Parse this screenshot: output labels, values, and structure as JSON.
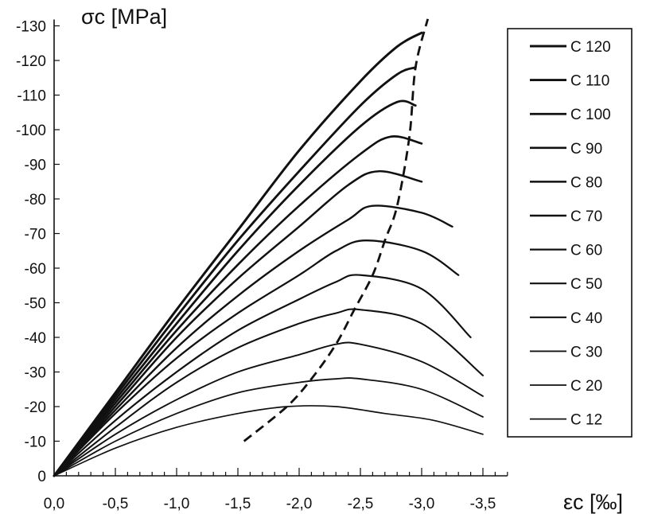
{
  "chart_data": {
    "type": "line",
    "ylabel": "σc [MPa]",
    "xlabel": "εc [‰]",
    "xlim": [
      0,
      -3.7
    ],
    "ylim": [
      0,
      -130
    ],
    "x_ticks": [
      "0,0",
      "-0,5",
      "-1,0",
      "-1,5",
      "-2,0",
      "-2,5",
      "-3,0",
      "-3,5"
    ],
    "x_tick_values": [
      0,
      -0.5,
      -1.0,
      -1.5,
      -2.0,
      -2.5,
      -3.0,
      -3.5
    ],
    "y_ticks": [
      "0",
      "-10",
      "-20",
      "-30",
      "-40",
      "-50",
      "-60",
      "-70",
      "-80",
      "-90",
      "-100",
      "-110",
      "-120",
      "-130"
    ],
    "y_tick_values": [
      0,
      -10,
      -20,
      -30,
      -40,
      -50,
      -60,
      -70,
      -80,
      -90,
      -100,
      -110,
      -120,
      -130
    ],
    "legend_position": "right",
    "series": [
      {
        "name": "C 120",
        "x": [
          0,
          -0.5,
          -1.0,
          -1.5,
          -2.0,
          -2.5,
          -2.8,
          -3.0
        ],
        "y": [
          0,
          -24,
          -48,
          -71,
          -94,
          -114,
          -124,
          -128
        ]
      },
      {
        "name": "C 110",
        "x": [
          0,
          -0.5,
          -1.0,
          -1.5,
          -2.0,
          -2.5,
          -2.8,
          -2.95
        ],
        "y": [
          0,
          -23,
          -46,
          -68,
          -88,
          -107,
          -116,
          -118
        ]
      },
      {
        "name": "C 100",
        "x": [
          0,
          -0.5,
          -1.0,
          -1.5,
          -2.0,
          -2.5,
          -2.8,
          -2.95
        ],
        "y": [
          0,
          -22,
          -44,
          -65,
          -84,
          -101,
          -108,
          -107
        ]
      },
      {
        "name": "C 90",
        "x": [
          0,
          -0.5,
          -1.0,
          -1.5,
          -2.0,
          -2.5,
          -2.75,
          -3.0
        ],
        "y": [
          0,
          -21,
          -42,
          -61,
          -78,
          -93,
          -98,
          -96
        ]
      },
      {
        "name": "C 80",
        "x": [
          0,
          -0.5,
          -1.0,
          -1.5,
          -2.0,
          -2.4,
          -2.65,
          -3.0
        ],
        "y": [
          0,
          -20,
          -40,
          -57,
          -72,
          -84,
          -88,
          -85
        ]
      },
      {
        "name": "C 70",
        "x": [
          0,
          -0.5,
          -1.0,
          -1.5,
          -2.0,
          -2.4,
          -2.6,
          -3.0,
          -3.25
        ],
        "y": [
          0,
          -19,
          -37,
          -52,
          -65,
          -74,
          -78,
          -76,
          -72
        ]
      },
      {
        "name": "C 60",
        "x": [
          0,
          -0.5,
          -1.0,
          -1.5,
          -2.0,
          -2.3,
          -2.55,
          -3.0,
          -3.3
        ],
        "y": [
          0,
          -18,
          -34,
          -47,
          -58,
          -65,
          -68,
          -65,
          -58
        ]
      },
      {
        "name": "C 50",
        "x": [
          0,
          -0.5,
          -1.0,
          -1.5,
          -2.0,
          -2.3,
          -2.5,
          -3.0,
          -3.4
        ],
        "y": [
          0,
          -16,
          -30,
          -42,
          -51,
          -56,
          -58,
          -54,
          -40
        ]
      },
      {
        "name": "C 40",
        "x": [
          0,
          -0.5,
          -1.0,
          -1.5,
          -2.0,
          -2.3,
          -2.5,
          -3.0,
          -3.5
        ],
        "y": [
          0,
          -14,
          -27,
          -37,
          -44,
          -47,
          -48,
          -44,
          -29
        ]
      },
      {
        "name": "C 30",
        "x": [
          0,
          -0.5,
          -1.0,
          -1.5,
          -2.0,
          -2.3,
          -2.5,
          -3.0,
          -3.5
        ],
        "y": [
          0,
          -12,
          -22,
          -30,
          -35,
          -38,
          -38,
          -33,
          -23
        ]
      },
      {
        "name": "C 20",
        "x": [
          0,
          -0.5,
          -1.0,
          -1.5,
          -2.0,
          -2.3,
          -2.5,
          -3.0,
          -3.5
        ],
        "y": [
          0,
          -10,
          -18,
          -24,
          -27,
          -28,
          -28,
          -25,
          -17
        ]
      },
      {
        "name": "C 12",
        "x": [
          0,
          -0.5,
          -1.0,
          -1.5,
          -1.9,
          -2.3,
          -2.7,
          -3.1,
          -3.5
        ],
        "y": [
          0,
          -8,
          -14,
          -18,
          -20,
          -20,
          -18,
          -16,
          -12
        ]
      }
    ],
    "peak_curve": {
      "style": "dashed",
      "x": [
        -1.55,
        -1.9,
        -2.1,
        -2.3,
        -2.45,
        -2.6,
        -2.7,
        -2.8,
        -2.9,
        -2.95,
        -3.05
      ],
      "y": [
        -10,
        -20,
        -28,
        -38,
        -48,
        -58,
        -68,
        -78,
        -98,
        -118,
        -132
      ]
    }
  }
}
